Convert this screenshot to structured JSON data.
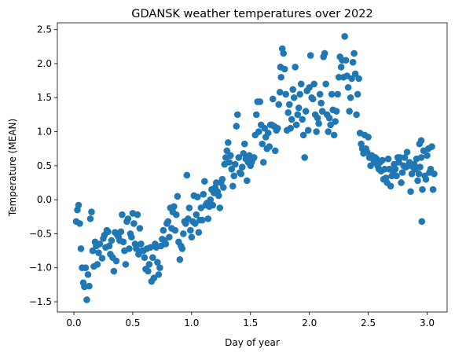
{
  "chart_data": {
    "type": "scatter",
    "title": "GDANSK weather temperatures over 2022",
    "xlabel": "Day of year",
    "ylabel": "Temperature (MEAN)",
    "xlim": [
      -0.14,
      3.17
    ],
    "ylim": [
      -1.65,
      2.6
    ],
    "grid": false,
    "legend": "none",
    "x_ticks": [
      0.0,
      0.5,
      1.0,
      1.5,
      2.0,
      2.5,
      3.0
    ],
    "x_tick_labels": [
      "0.0",
      "0.5",
      "1.0",
      "1.5",
      "2.0",
      "2.5",
      "3.0"
    ],
    "y_ticks": [
      -1.5,
      -1.0,
      -0.5,
      0.0,
      0.5,
      1.0,
      1.5,
      2.0,
      2.5
    ],
    "y_tick_labels": [
      "−1.5",
      "−1.0",
      "−0.5",
      "0.0",
      "0.5",
      "1.0",
      "1.5",
      "2.0",
      "2.5"
    ],
    "marker_color": "#1f77b4",
    "points": [
      [
        0.02,
        -0.32
      ],
      [
        0.03,
        -0.15
      ],
      [
        0.04,
        -0.08
      ],
      [
        0.05,
        -0.35
      ],
      [
        0.06,
        -0.72
      ],
      [
        0.07,
        -1.0
      ],
      [
        0.08,
        -1.22
      ],
      [
        0.09,
        -1.28
      ],
      [
        0.1,
        -1.0
      ],
      [
        0.11,
        -1.47
      ],
      [
        0.12,
        -1.1
      ],
      [
        0.13,
        -1.27
      ],
      [
        0.14,
        -0.28
      ],
      [
        0.15,
        -0.18
      ],
      [
        0.16,
        -0.75
      ],
      [
        0.17,
        -0.98
      ],
      [
        0.18,
        -0.62
      ],
      [
        0.19,
        -0.68
      ],
      [
        0.2,
        -0.95
      ],
      [
        0.21,
        -0.78
      ],
      [
        0.22,
        -0.65
      ],
      [
        0.24,
        -0.86
      ],
      [
        0.25,
        -0.57
      ],
      [
        0.26,
        -0.52
      ],
      [
        0.27,
        -0.7
      ],
      [
        0.28,
        -0.45
      ],
      [
        0.29,
        -0.47
      ],
      [
        0.3,
        -0.68
      ],
      [
        0.31,
        -0.8
      ],
      [
        0.32,
        -0.6
      ],
      [
        0.33,
        -0.85
      ],
      [
        0.34,
        -1.05
      ],
      [
        0.35,
        -0.48
      ],
      [
        0.36,
        -0.9
      ],
      [
        0.37,
        -0.52
      ],
      [
        0.38,
        -0.55
      ],
      [
        0.39,
        -0.6
      ],
      [
        0.4,
        -0.47
      ],
      [
        0.41,
        -0.22
      ],
      [
        0.42,
        -0.62
      ],
      [
        0.43,
        -0.75
      ],
      [
        0.44,
        -0.95
      ],
      [
        0.45,
        -0.32
      ],
      [
        0.46,
        -0.28
      ],
      [
        0.47,
        -0.72
      ],
      [
        0.48,
        -0.5
      ],
      [
        0.49,
        -0.55
      ],
      [
        0.5,
        -0.2
      ],
      [
        0.51,
        -0.35
      ],
      [
        0.52,
        -0.65
      ],
      [
        0.53,
        -0.72
      ],
      [
        0.54,
        -0.22
      ],
      [
        0.55,
        -0.8
      ],
      [
        0.56,
        -0.42
      ],
      [
        0.57,
        -0.65
      ],
      [
        0.58,
        -0.75
      ],
      [
        0.59,
        -0.75
      ],
      [
        0.6,
        -0.85
      ],
      [
        0.61,
        -1.02
      ],
      [
        0.62,
        -0.72
      ],
      [
        0.63,
        -1.05
      ],
      [
        0.64,
        -0.95
      ],
      [
        0.65,
        -0.7
      ],
      [
        0.66,
        -1.2
      ],
      [
        0.67,
        -0.85
      ],
      [
        0.68,
        -1.15
      ],
      [
        0.69,
        -0.65
      ],
      [
        0.7,
        -0.7
      ],
      [
        0.71,
        -0.92
      ],
      [
        0.72,
        -1.1
      ],
      [
        0.73,
        -1.0
      ],
      [
        0.74,
        -0.68
      ],
      [
        0.75,
        -0.58
      ],
      [
        0.76,
        -0.45
      ],
      [
        0.77,
        -0.6
      ],
      [
        0.78,
        -0.65
      ],
      [
        0.79,
        -0.35
      ],
      [
        0.8,
        -0.32
      ],
      [
        0.81,
        -0.55
      ],
      [
        0.82,
        -0.12
      ],
      [
        0.83,
        -0.42
      ],
      [
        0.84,
        -0.18
      ],
      [
        0.85,
        -0.1
      ],
      [
        0.86,
        -0.45
      ],
      [
        0.87,
        -0.22
      ],
      [
        0.88,
        0.05
      ],
      [
        0.89,
        -0.62
      ],
      [
        0.9,
        -0.88
      ],
      [
        0.91,
        -0.68
      ],
      [
        0.92,
        -0.72
      ],
      [
        0.93,
        -0.5
      ],
      [
        0.94,
        -0.32
      ],
      [
        0.95,
        -0.35
      ],
      [
        0.96,
        0.36
      ],
      [
        0.97,
        -0.28
      ],
      [
        0.98,
        -0.12
      ],
      [
        0.99,
        -0.45
      ],
      [
        1.0,
        -0.55
      ],
      [
        1.01,
        -0.32
      ],
      [
        1.02,
        0.06
      ],
      [
        1.03,
        -0.35
      ],
      [
        1.04,
        -0.22
      ],
      [
        1.05,
        0.04
      ],
      [
        1.06,
        -0.48
      ],
      [
        1.07,
        -0.3
      ],
      [
        1.08,
        -0.12
      ],
      [
        1.09,
        -0.3
      ],
      [
        1.1,
        0.08
      ],
      [
        1.11,
        0.27
      ],
      [
        1.12,
        -0.08
      ],
      [
        1.13,
        -0.05
      ],
      [
        1.14,
        -0.28
      ],
      [
        1.15,
        -0.1
      ],
      [
        1.16,
        0.0
      ],
      [
        1.17,
        0.15
      ],
      [
        1.18,
        -0.08
      ],
      [
        1.19,
        0.1
      ],
      [
        1.2,
        0.18
      ],
      [
        1.21,
        0.25
      ],
      [
        1.22,
        0.12
      ],
      [
        1.23,
        0.06
      ],
      [
        1.24,
        -0.12
      ],
      [
        1.25,
        0.25
      ],
      [
        1.26,
        0.3
      ],
      [
        1.27,
        0.18
      ],
      [
        1.28,
        0.52
      ],
      [
        1.29,
        0.62
      ],
      [
        1.3,
        0.72
      ],
      [
        1.31,
        0.84
      ],
      [
        1.32,
        0.55
      ],
      [
        1.33,
        0.65
      ],
      [
        1.34,
        0.45
      ],
      [
        1.35,
        0.2
      ],
      [
        1.36,
        0.35
      ],
      [
        1.37,
        0.52
      ],
      [
        1.38,
        1.08
      ],
      [
        1.39,
        1.25
      ],
      [
        1.4,
        0.62
      ],
      [
        1.41,
        0.4
      ],
      [
        1.42,
        0.38
      ],
      [
        1.43,
        0.48
      ],
      [
        1.44,
        0.68
      ],
      [
        1.45,
        0.82
      ],
      [
        1.46,
        0.6
      ],
      [
        1.47,
        0.28
      ],
      [
        1.48,
        0.55
      ],
      [
        1.49,
        0.65
      ],
      [
        1.5,
        0.5
      ],
      [
        1.51,
        0.55
      ],
      [
        1.52,
        0.6
      ],
      [
        1.53,
        0.62
      ],
      [
        1.54,
        0.95
      ],
      [
        1.55,
        1.25
      ],
      [
        1.56,
        1.44
      ],
      [
        1.57,
        1.0
      ],
      [
        1.58,
        1.44
      ],
      [
        1.59,
        1.1
      ],
      [
        1.6,
        0.82
      ],
      [
        1.61,
        0.55
      ],
      [
        1.62,
        1.05
      ],
      [
        1.63,
        0.92
      ],
      [
        1.64,
        0.75
      ],
      [
        1.65,
        0.98
      ],
      [
        1.66,
        0.78
      ],
      [
        1.67,
        1.1
      ],
      [
        1.68,
        1.1
      ],
      [
        1.69,
        1.48
      ],
      [
        1.7,
        1.08
      ],
      [
        1.71,
        0.72
      ],
      [
        1.72,
        1.02
      ],
      [
        1.73,
        1.05
      ],
      [
        1.74,
        1.4
      ],
      [
        1.75,
        1.58
      ],
      [
        1.76,
        1.8
      ],
      [
        1.77,
        2.22
      ],
      [
        1.78,
        2.15
      ],
      [
        1.79,
        1.92
      ],
      [
        1.8,
        1.55
      ],
      [
        1.81,
        1.02
      ],
      [
        1.82,
        1.28
      ],
      [
        1.83,
        1.4
      ],
      [
        1.84,
        1.05
      ],
      [
        1.85,
        1.18
      ],
      [
        1.86,
        1.62
      ],
      [
        1.87,
        1.5
      ],
      [
        1.88,
        1.95
      ],
      [
        1.89,
        1.1
      ],
      [
        1.9,
        1.25
      ],
      [
        1.91,
        1.35
      ],
      [
        1.92,
        1.55
      ],
      [
        1.93,
        1.7
      ],
      [
        1.94,
        1.18
      ],
      [
        1.95,
        0.95
      ],
      [
        1.96,
        0.62
      ],
      [
        1.97,
        1.3
      ],
      [
        1.98,
        1.6
      ],
      [
        1.99,
        1.02
      ],
      [
        2.0,
        1.65
      ],
      [
        2.01,
        2.12
      ],
      [
        2.02,
        1.5
      ],
      [
        2.03,
        1.48
      ],
      [
        2.04,
        1.7
      ],
      [
        2.05,
        1.25
      ],
      [
        2.06,
        1.0
      ],
      [
        2.07,
        1.2
      ],
      [
        2.08,
        1.12
      ],
      [
        2.09,
        1.55
      ],
      [
        2.1,
        1.42
      ],
      [
        2.11,
        1.3
      ],
      [
        2.12,
        2.1
      ],
      [
        2.13,
        2.15
      ],
      [
        2.14,
        1.7
      ],
      [
        2.15,
        1.25
      ],
      [
        2.16,
        1.0
      ],
      [
        2.17,
        1.2
      ],
      [
        2.18,
        1.1
      ],
      [
        2.19,
        1.55
      ],
      [
        2.2,
        1.32
      ],
      [
        2.21,
        0.95
      ],
      [
        2.22,
        1.15
      ],
      [
        2.23,
        1.3
      ],
      [
        2.24,
        1.55
      ],
      [
        2.25,
        1.8
      ],
      [
        2.26,
        2.1
      ],
      [
        2.27,
        1.95
      ],
      [
        2.28,
        2.05
      ],
      [
        2.29,
        1.8
      ],
      [
        2.3,
        2.4
      ],
      [
        2.31,
        2.05
      ],
      [
        2.32,
        1.82
      ],
      [
        2.33,
        1.65
      ],
      [
        2.34,
        1.3
      ],
      [
        2.35,
        1.5
      ],
      [
        2.36,
        1.78
      ],
      [
        2.37,
        2.02
      ],
      [
        2.38,
        2.15
      ],
      [
        2.39,
        1.85
      ],
      [
        2.4,
        1.25
      ],
      [
        2.41,
        1.55
      ],
      [
        2.42,
        1.78
      ],
      [
        2.43,
        0.98
      ],
      [
        2.44,
        0.82
      ],
      [
        2.45,
        0.75
      ],
      [
        2.46,
        0.68
      ],
      [
        2.47,
        0.95
      ],
      [
        2.48,
        0.75
      ],
      [
        2.49,
        0.7
      ],
      [
        2.5,
        0.92
      ],
      [
        2.51,
        0.62
      ],
      [
        2.52,
        0.5
      ],
      [
        2.53,
        0.65
      ],
      [
        2.54,
        0.6
      ],
      [
        2.55,
        0.55
      ],
      [
        2.56,
        0.62
      ],
      [
        2.57,
        0.6
      ],
      [
        2.58,
        0.5
      ],
      [
        2.59,
        0.45
      ],
      [
        2.6,
        0.55
      ],
      [
        2.61,
        0.42
      ],
      [
        2.62,
        0.58
      ],
      [
        2.63,
        0.3
      ],
      [
        2.64,
        0.45
      ],
      [
        2.65,
        0.32
      ],
      [
        2.66,
        0.25
      ],
      [
        2.67,
        0.6
      ],
      [
        2.68,
        0.45
      ],
      [
        2.69,
        0.2
      ],
      [
        2.7,
        0.35
      ],
      [
        2.71,
        0.42
      ],
      [
        2.72,
        0.52
      ],
      [
        2.73,
        0.45
      ],
      [
        2.74,
        0.35
      ],
      [
        2.75,
        0.62
      ],
      [
        2.76,
        0.55
      ],
      [
        2.77,
        0.62
      ],
      [
        2.78,
        0.25
      ],
      [
        2.79,
        0.4
      ],
      [
        2.8,
        0.5
      ],
      [
        2.81,
        0.62
      ],
      [
        2.82,
        0.48
      ],
      [
        2.83,
        0.7
      ],
      [
        2.84,
        0.5
      ],
      [
        2.85,
        0.55
      ],
      [
        2.86,
        0.12
      ],
      [
        2.87,
        0.38
      ],
      [
        2.88,
        0.48
      ],
      [
        2.89,
        0.52
      ],
      [
        2.9,
        0.45
      ],
      [
        2.91,
        0.6
      ],
      [
        2.92,
        0.28
      ],
      [
        2.93,
        0.38
      ],
      [
        2.94,
        0.48
      ],
      [
        2.95,
        0.62
      ],
      [
        2.96,
        0.15
      ],
      [
        2.97,
        0.72
      ],
      [
        2.98,
        0.35
      ],
      [
        2.99,
        0.3
      ],
      [
        3.0,
        0.65
      ],
      [
        3.01,
        0.75
      ],
      [
        3.02,
        0.4
      ],
      [
        3.03,
        0.45
      ],
      [
        3.04,
        0.78
      ],
      [
        3.05,
        0.15
      ],
      [
        3.06,
        0.38
      ],
      [
        2.955,
        -0.32
      ],
      [
        2.935,
        0.82
      ],
      [
        2.95,
        0.87
      ],
      [
        1.755,
        1.95
      ]
    ]
  }
}
